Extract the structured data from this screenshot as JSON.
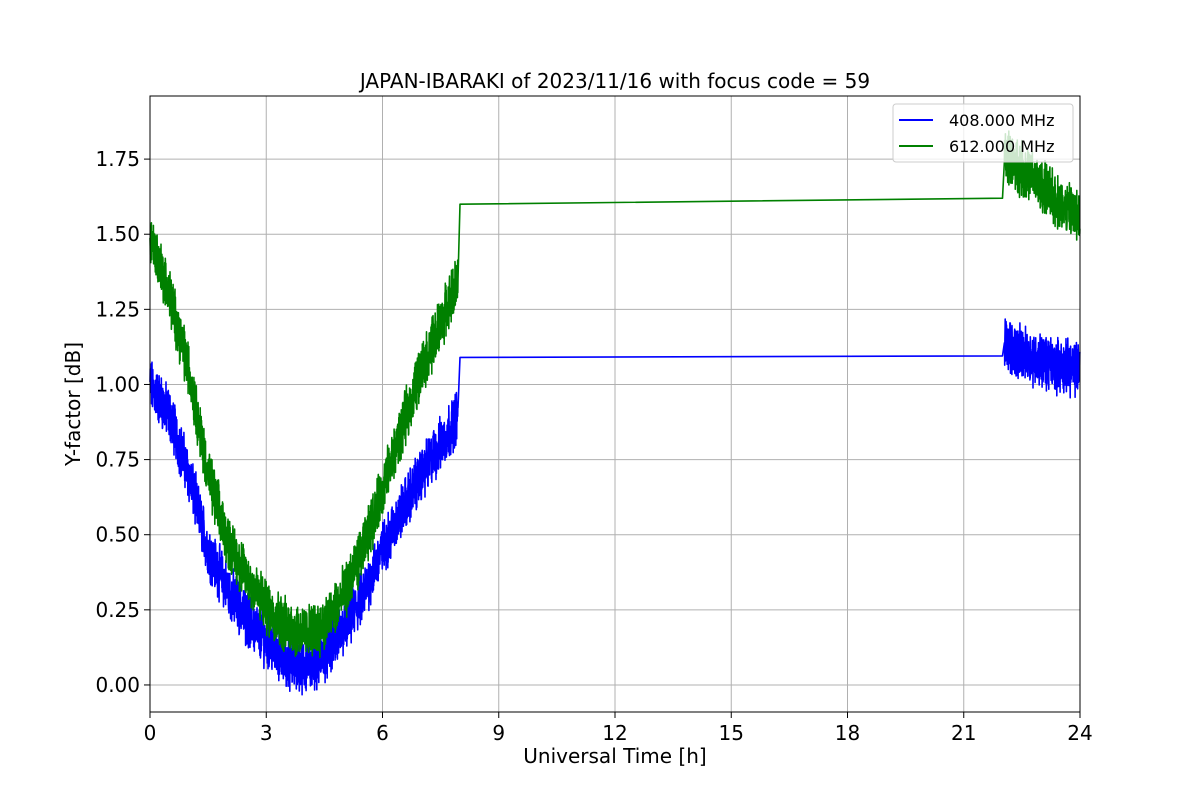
{
  "chart_data": {
    "type": "line",
    "title": "JAPAN-IBARAKI of 2023/11/16 with focus code = 59",
    "xlabel": "Universal Time [h]",
    "ylabel": "Y-factor [dB]",
    "xlim": [
      0,
      24
    ],
    "ylim": [
      -0.09,
      1.96
    ],
    "xticks": [
      0,
      3,
      6,
      9,
      12,
      15,
      18,
      21,
      24
    ],
    "yticks": [
      0.0,
      0.25,
      0.5,
      0.75,
      1.0,
      1.25,
      1.5,
      1.75
    ],
    "xtick_labels": [
      "0",
      "3",
      "6",
      "9",
      "12",
      "15",
      "18",
      "21",
      "24"
    ],
    "ytick_labels": [
      "0.00",
      "0.25",
      "0.50",
      "0.75",
      "1.00",
      "1.25",
      "1.50",
      "1.75"
    ],
    "grid": true,
    "legend_position": "top-right",
    "series": [
      {
        "name": "408.000 MHz",
        "color": "#0000ff",
        "noise_band": 0.14,
        "x": [
          0,
          0.5,
          1,
          1.5,
          2,
          2.5,
          3,
          3.5,
          4,
          4.5,
          5,
          5.5,
          6,
          6.5,
          7,
          7.5,
          7.95,
          8.0,
          22.0,
          22.05,
          22.5,
          23,
          23.5,
          24
        ],
        "y": [
          1.0,
          0.9,
          0.7,
          0.45,
          0.32,
          0.22,
          0.15,
          0.08,
          0.06,
          0.1,
          0.18,
          0.3,
          0.45,
          0.58,
          0.7,
          0.8,
          0.9,
          1.09,
          1.095,
          1.14,
          1.1,
          1.08,
          1.06,
          1.05
        ]
      },
      {
        "name": "612.000 MHz",
        "color": "#008000",
        "noise_band": 0.14,
        "x": [
          0,
          0.5,
          1,
          1.5,
          2,
          2.5,
          3,
          3.5,
          4,
          4.5,
          5,
          5.5,
          6,
          6.5,
          7,
          7.5,
          7.95,
          8.0,
          22.0,
          22.05,
          22.5,
          23,
          23.5,
          24
        ],
        "y": [
          1.5,
          1.3,
          1.05,
          0.7,
          0.48,
          0.36,
          0.26,
          0.2,
          0.17,
          0.2,
          0.3,
          0.45,
          0.65,
          0.85,
          1.05,
          1.2,
          1.35,
          1.6,
          1.62,
          1.76,
          1.72,
          1.66,
          1.6,
          1.55
        ]
      }
    ]
  }
}
